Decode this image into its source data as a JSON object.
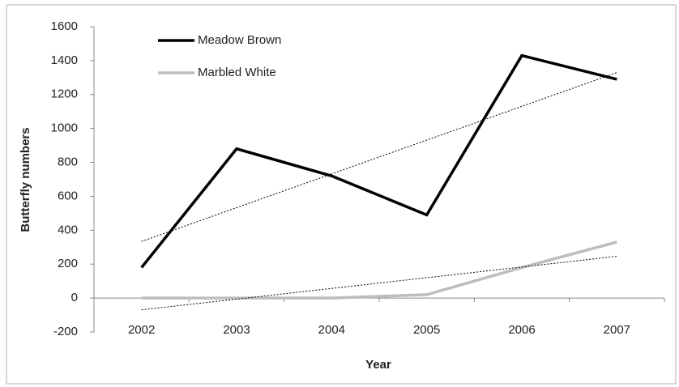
{
  "chart_data": {
    "type": "line",
    "x_label": "Year",
    "y_label": "Butterfly numbers",
    "categories": [
      "2002",
      "2003",
      "2004",
      "2005",
      "2006",
      "2007"
    ],
    "series": [
      {
        "name": "Meadow Brown",
        "color": "#000000",
        "values": [
          180,
          880,
          720,
          490,
          1430,
          1290
        ],
        "trendline": true
      },
      {
        "name": "Marbled White",
        "color": "#bdbdbd",
        "values": [
          0,
          0,
          0,
          20,
          180,
          330
        ],
        "trendline": true
      }
    ],
    "ylim": [
      -200,
      1600
    ],
    "yticks": [
      -200,
      0,
      200,
      400,
      600,
      800,
      1000,
      1200,
      1400,
      1600
    ],
    "grid": false,
    "legend": "upper left"
  }
}
